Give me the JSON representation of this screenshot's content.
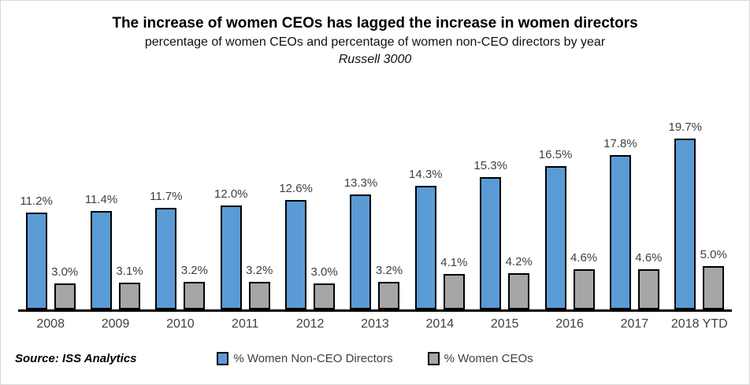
{
  "source_note": "Source: ISS Analytics",
  "chart_data": {
    "type": "bar",
    "title": "The increase of women CEOs has lagged the increase in women directors",
    "subtitle": "percentage of women CEOs and percentage of women non-CEO directors by year",
    "index_label": "Russell 3000",
    "categories": [
      "2008",
      "2009",
      "2010",
      "2011",
      "2012",
      "2013",
      "2014",
      "2015",
      "2016",
      "2017",
      "2018 YTD"
    ],
    "series": [
      {
        "name": "% Women Non-CEO Directors",
        "color": "#5B9BD5",
        "values": [
          11.2,
          11.4,
          11.7,
          12.0,
          12.6,
          13.3,
          14.3,
          15.3,
          16.5,
          17.8,
          19.7
        ],
        "labels": [
          "11.2%",
          "11.4%",
          "11.7%",
          "12.0%",
          "12.6%",
          "13.3%",
          "14.3%",
          "15.3%",
          "16.5%",
          "17.8%",
          "19.7%"
        ]
      },
      {
        "name": "% Women CEOs",
        "color": "#A6A6A6",
        "values": [
          3.0,
          3.1,
          3.2,
          3.2,
          3.0,
          3.2,
          4.1,
          4.2,
          4.6,
          4.6,
          5.0
        ],
        "labels": [
          "3.0%",
          "3.1%",
          "3.2%",
          "3.2%",
          "3.0%",
          "3.2%",
          "4.1%",
          "4.2%",
          "4.6%",
          "4.6%",
          "5.0%"
        ]
      }
    ],
    "ylim": [
      0,
      20
    ],
    "grid": false,
    "axis_line_color": "#000000",
    "bar_outline_color": "#000000",
    "label_color": "#404040",
    "legend_position": "bottom",
    "data_labels": true
  }
}
